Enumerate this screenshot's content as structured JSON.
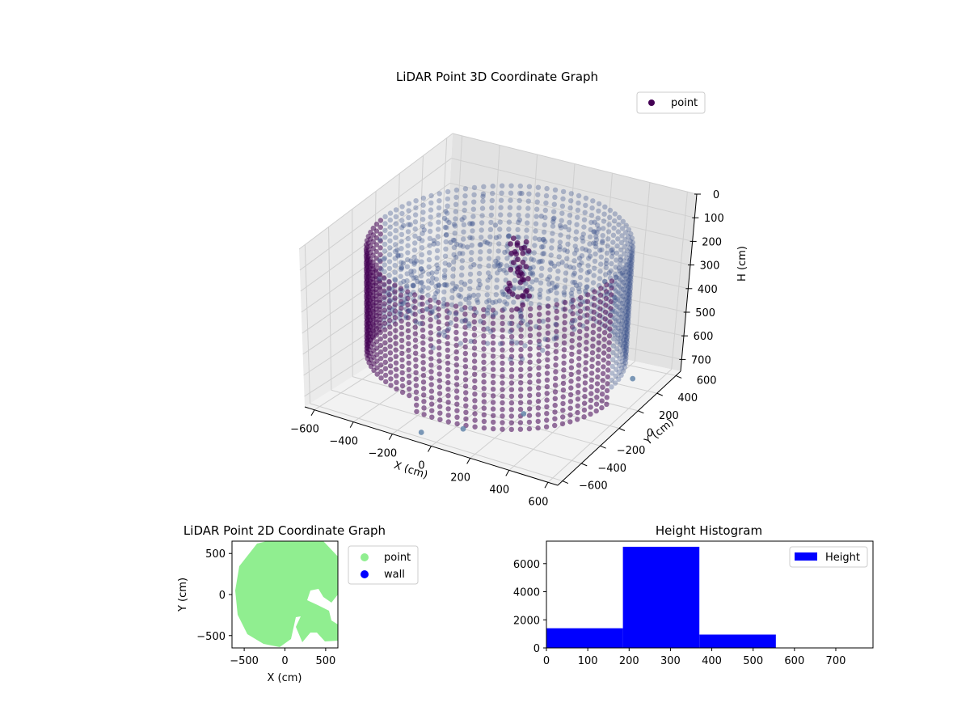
{
  "chart_data": [
    {
      "type": "scatter",
      "subtype": "3d",
      "title": "LiDAR Point 3D Coordinate Graph",
      "xlabel": "X (cm)",
      "ylabel": "Y (cm)",
      "zlabel": "H (cm)",
      "x_ticks": [
        "−600",
        "−400",
        "−200",
        "0",
        "200",
        "400",
        "600"
      ],
      "y_ticks": [
        "−600",
        "−400",
        "−200",
        "0",
        "200",
        "400",
        "600"
      ],
      "z_ticks": [
        "0",
        "100",
        "200",
        "300",
        "400",
        "500",
        "600",
        "700"
      ],
      "xlim": [
        -650,
        650
      ],
      "ylim": [
        -650,
        650
      ],
      "zlim": [
        0,
        750
      ],
      "z_inverted": true,
      "grid": true,
      "legend": {
        "label": "point",
        "placement": "top-right"
      },
      "colors": {
        "point": "#440154",
        "point_light": "#3b528b",
        "outlier": "#5b7fa6"
      },
      "series": [
        {
          "name": "point",
          "description_shape": "cylindrical wall of radius ~600 cm plus interior structure",
          "wall_radius": 600,
          "wall_height_range": [
            100,
            600
          ],
          "outliers": [
            [
              650,
              120,
              580
            ],
            [
              430,
              -560,
              520
            ],
            [
              150,
              -620,
              640
            ],
            [
              -50,
              -650,
              700
            ]
          ]
        }
      ]
    },
    {
      "type": "scatter",
      "title": "LiDAR Point 2D Coordinate Graph",
      "xlabel": "X (cm)",
      "ylabel": "Y (cm)",
      "x_ticks": [
        "−500",
        "0",
        "500"
      ],
      "y_ticks": [
        "500",
        "0",
        "−500"
      ],
      "xlim": [
        -650,
        650
      ],
      "ylim": [
        -650,
        650
      ],
      "legend": {
        "placement": "outside-right",
        "entries": [
          {
            "label": "point",
            "color": "#90ee90"
          },
          {
            "label": "wall",
            "color": "#0000ff"
          }
        ]
      },
      "series": [
        {
          "name": "point",
          "color": "#90ee90",
          "region": "disc of radius ~620 cm with notch near (300,-100)"
        },
        {
          "name": "wall",
          "color": "#0000ff",
          "values": []
        }
      ]
    },
    {
      "type": "bar",
      "subtype": "histogram",
      "title": "Height Histogram",
      "legend": {
        "label": "Height",
        "placement": "top-right"
      },
      "color": "#0000ff",
      "bins": [
        {
          "start": 0,
          "end": 185,
          "count": 1400
        },
        {
          "start": 185,
          "end": 370,
          "count": 7200
        },
        {
          "start": 370,
          "end": 555,
          "count": 950
        },
        {
          "start": 555,
          "end": 740,
          "count": 10
        }
      ],
      "x_ticks": [
        "0",
        "100",
        "200",
        "300",
        "400",
        "500",
        "600",
        "700"
      ],
      "y_ticks": [
        "0",
        "2000",
        "4000",
        "6000"
      ],
      "xlim": [
        0,
        790
      ],
      "ylim": [
        0,
        7600
      ]
    }
  ]
}
